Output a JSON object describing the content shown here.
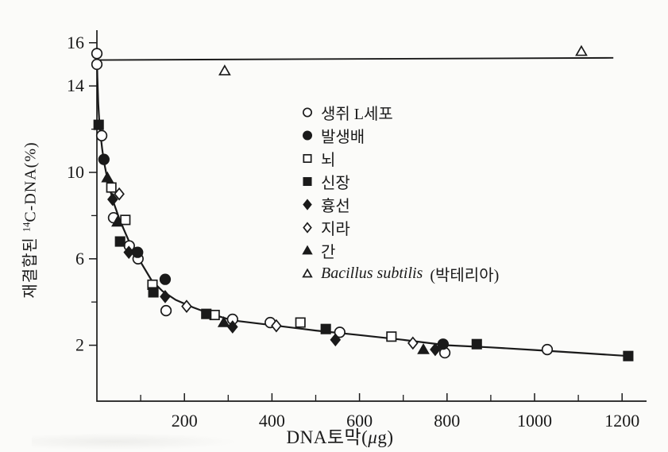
{
  "figure": {
    "background": "#fbfbf9",
    "ink": "#1a1a1a"
  },
  "axes": {
    "x": {
      "title": "DNA토막(μg)",
      "title_parts": {
        "prefix": "DNA토막(",
        "mu": "μ",
        "suffix": "g)"
      },
      "labeled_ticks": [
        200,
        400,
        600,
        800,
        1000,
        1200
      ],
      "minor_ticks": [
        100,
        300,
        500,
        700,
        900,
        1100
      ],
      "range": [
        0,
        1255
      ]
    },
    "y": {
      "title": "재결합된 ¹⁴C-DNA(%)",
      "title_parts": {
        "prefix": "재결합된 ",
        "sup": "14",
        "suffix": "C-DNA(%)"
      },
      "labeled_ticks": [
        2,
        6,
        10,
        14,
        16
      ],
      "minor_ticks": [
        4,
        8,
        12
      ],
      "range": [
        0,
        16.8
      ]
    }
  },
  "chart_data": {
    "type": "scatter",
    "title": "",
    "xlabel": "DNA토막(μg)",
    "ylabel": "재결합된 ¹⁴C-DNA(%)",
    "xlim": [
      0,
      1255
    ],
    "ylim": [
      0,
      16.8
    ],
    "grid": false,
    "legend_position": "upper-middle",
    "series": [
      {
        "name": "생쥐 L세포",
        "legend_label": "생쥐 L세포",
        "marker": "circle",
        "filled": false,
        "points": [
          [
            0,
            15.5
          ],
          [
            0,
            15.0
          ],
          [
            11,
            11.7
          ],
          [
            38,
            7.9
          ],
          [
            74,
            6.6
          ],
          [
            94,
            6.0
          ],
          [
            158,
            3.6
          ],
          [
            310,
            3.2
          ],
          [
            396,
            3.05
          ],
          [
            555,
            2.6
          ],
          [
            795,
            1.65
          ],
          [
            1029,
            1.8
          ]
        ]
      },
      {
        "name": "발생배",
        "legend_label": "발생배",
        "marker": "circle",
        "filled": true,
        "points": [
          [
            16,
            10.6
          ],
          [
            93,
            6.3
          ],
          [
            156,
            5.05
          ],
          [
            791,
            2.05
          ]
        ]
      },
      {
        "name": "뇌",
        "legend_label": "뇌",
        "marker": "square",
        "filled": false,
        "points": [
          [
            33,
            9.3
          ],
          [
            65,
            7.8
          ],
          [
            127,
            4.8
          ],
          [
            269,
            3.4
          ],
          [
            465,
            3.05
          ],
          [
            673,
            2.4
          ]
        ]
      },
      {
        "name": "신장",
        "legend_label": "신장",
        "marker": "square",
        "filled": true,
        "points": [
          [
            4,
            12.2
          ],
          [
            53,
            6.8
          ],
          [
            129,
            4.45
          ],
          [
            250,
            3.45
          ],
          [
            523,
            2.75
          ],
          [
            868,
            2.05
          ],
          [
            1214,
            1.5
          ]
        ]
      },
      {
        "name": "흉선",
        "legend_label": "흉선",
        "marker": "diamond",
        "filled": true,
        "points": [
          [
            36,
            8.75
          ],
          [
            73,
            6.3
          ],
          [
            156,
            4.25
          ],
          [
            310,
            2.85
          ],
          [
            545,
            2.25
          ],
          [
            773,
            1.8
          ]
        ]
      },
      {
        "name": "지라",
        "legend_label": "지라",
        "marker": "diamond",
        "filled": false,
        "points": [
          [
            51,
            9.0
          ],
          [
            205,
            3.8
          ],
          [
            410,
            2.9
          ],
          [
            722,
            2.1
          ]
        ]
      },
      {
        "name": "간",
        "legend_label": "간",
        "marker": "triangle",
        "filled": true,
        "points": [
          [
            24,
            9.75
          ],
          [
            47,
            7.7
          ],
          [
            290,
            3.05
          ],
          [
            746,
            1.8
          ]
        ]
      },
      {
        "name": "Bacillus subtilis (박테리아)",
        "legend_label": "Bacillus subtilis",
        "legend_suffix": " (박테리아)",
        "italic": true,
        "marker": "triangle",
        "filled": false,
        "points": [
          [
            292,
            14.7
          ],
          [
            1107,
            15.6
          ]
        ]
      }
    ],
    "fit_curve": [
      [
        0,
        15.3
      ],
      [
        1,
        14.4
      ],
      [
        3,
        13.2
      ],
      [
        5,
        12.5
      ],
      [
        8,
        11.8
      ],
      [
        12,
        11.1
      ],
      [
        16,
        10.5
      ],
      [
        22,
        9.9
      ],
      [
        30,
        9.2
      ],
      [
        40,
        8.5
      ],
      [
        52,
        7.8
      ],
      [
        65,
        7.2
      ],
      [
        80,
        6.5
      ],
      [
        100,
        5.85
      ],
      [
        125,
        5.0
      ],
      [
        150,
        4.5
      ],
      [
        180,
        4.1
      ],
      [
        220,
        3.75
      ],
      [
        260,
        3.45
      ],
      [
        310,
        3.15
      ],
      [
        400,
        2.93
      ],
      [
        500,
        2.68
      ],
      [
        600,
        2.47
      ],
      [
        700,
        2.25
      ],
      [
        800,
        2.0
      ],
      [
        900,
        1.9
      ],
      [
        1000,
        1.78
      ],
      [
        1100,
        1.65
      ],
      [
        1215,
        1.5
      ]
    ],
    "bacteria_line": {
      "x1": 0,
      "y1": 15.2,
      "x2": 1180,
      "y2": 15.3
    }
  }
}
